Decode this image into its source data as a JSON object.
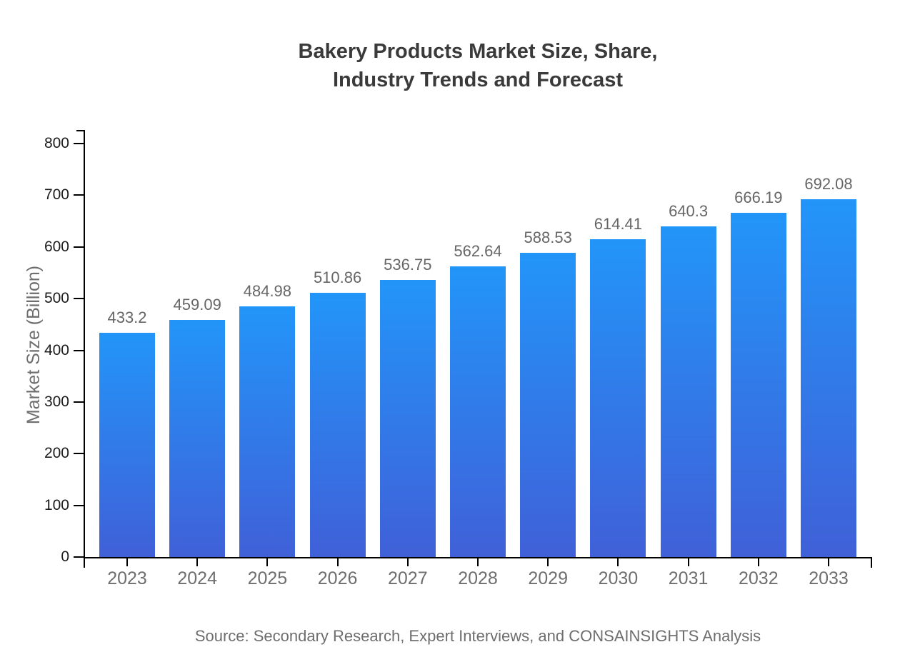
{
  "title": "Bakery Products Market Size, Share,\nIndustry Trends and Forecast",
  "source": "Source: Secondary Research, Expert Interviews, and CONSAINSIGHTS Analysis",
  "chart_data": {
    "type": "bar",
    "title": "Bakery Products Market Size, Share, Industry Trends and Forecast",
    "categories": [
      "2023",
      "2024",
      "2025",
      "2026",
      "2027",
      "2028",
      "2029",
      "2030",
      "2031",
      "2032",
      "2033"
    ],
    "values": [
      433.2,
      459.09,
      484.98,
      510.86,
      536.75,
      562.64,
      588.53,
      614.41,
      640.3,
      666.19,
      692.08
    ],
    "value_labels": [
      "433.2",
      "459.09",
      "484.98",
      "510.86",
      "536.75",
      "562.64",
      "588.53",
      "614.41",
      "640.3",
      "666.19",
      "692.08"
    ],
    "xlabel": "",
    "ylabel": "Market Size (Billion)",
    "ylim": [
      0,
      800
    ],
    "yticks": [
      0,
      100,
      200,
      300,
      400,
      500,
      600,
      700,
      800
    ],
    "grid": false,
    "legend_position": "none"
  },
  "colors": {
    "bar_gradient_top": "#2295f9",
    "bar_gradient_bottom": "#4060d8",
    "axis": "#000000",
    "y_tick_label": "#1c1c1c",
    "x_tick_label": "#6e6e6e",
    "value_label": "#666666",
    "title_text": "#3a3a3a",
    "source_text": "#6e6e6e",
    "background": "#ffffff"
  }
}
